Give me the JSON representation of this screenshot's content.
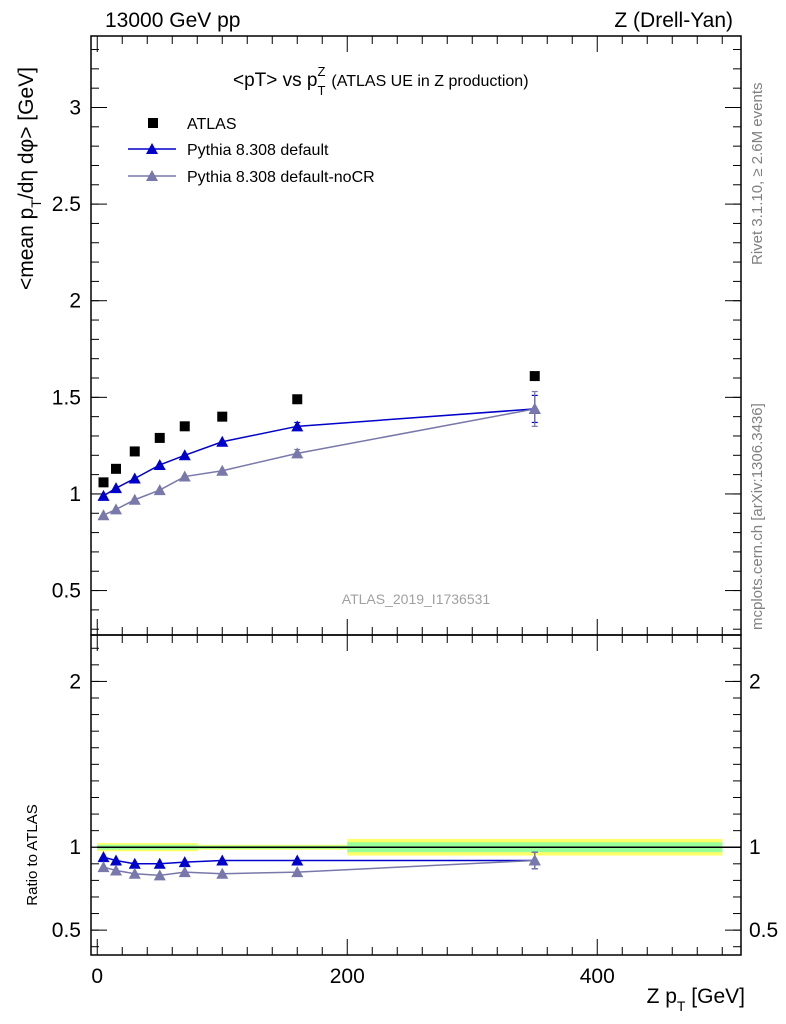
{
  "header": {
    "left": "13000 GeV pp",
    "right": "Z (Drell-Yan)"
  },
  "side_labels": {
    "rivet": "Rivet 3.1.10, ≥ 2.6M events",
    "mcplots": "mcplots.cern.ch [arXiv:1306.3436]"
  },
  "colors": {
    "atlas": "#000000",
    "default": "#0000cc",
    "noCR": "#7878aa",
    "band_inner": "#99ff99",
    "band_outer": "#ffff66"
  },
  "chart_data": [
    {
      "type": "scatter",
      "title": "<pT> vs p_T^Z (ATLAS UE in Z production)",
      "title_main": "<pT> vs p",
      "title_sub": "T",
      "title_sup": "Z",
      "title_rest": "(ATLAS UE in Z production)",
      "ylabel": "<mean p_T/dη dφ> [GeV]",
      "ylabel_parts": [
        "<mean p",
        "T",
        "/dη dφ> [GeV]"
      ],
      "watermark": "ATLAS_2019_I1736531",
      "xlim": [
        -5,
        515
      ],
      "ylim": [
        0.27,
        3.37
      ],
      "yticks": [
        0.5,
        1,
        1.5,
        2,
        2.5,
        3
      ],
      "ytick_labels": [
        "0.5",
        "1",
        "1.5",
        "2",
        "2.5",
        "3"
      ],
      "legend_position": "top-left",
      "series": [
        {
          "name": "ATLAS",
          "marker": "square",
          "x": [
            5,
            15,
            30,
            50,
            70,
            100,
            160,
            350
          ],
          "y": [
            1.06,
            1.13,
            1.22,
            1.29,
            1.35,
            1.4,
            1.49,
            1.61
          ]
        },
        {
          "name": "Pythia 8.308 default",
          "marker": "triangle",
          "x": [
            5,
            15,
            30,
            50,
            70,
            100,
            160,
            350
          ],
          "y": [
            0.99,
            1.03,
            1.08,
            1.15,
            1.2,
            1.27,
            1.35,
            1.44
          ],
          "yerr": [
            0.01,
            0.01,
            0.01,
            0.01,
            0.01,
            0.01,
            0.02,
            0.07
          ]
        },
        {
          "name": "Pythia 8.308 default-noCR",
          "marker": "triangle",
          "x": [
            5,
            15,
            30,
            50,
            70,
            100,
            160,
            350
          ],
          "y": [
            0.89,
            0.92,
            0.97,
            1.02,
            1.09,
            1.12,
            1.21,
            1.44
          ],
          "yerr": [
            0.01,
            0.01,
            0.01,
            0.01,
            0.01,
            0.01,
            0.02,
            0.09
          ]
        }
      ]
    },
    {
      "type": "scatter",
      "ylabel": "Ratio to ATLAS",
      "xlabel": "Z p_T [GeV]",
      "xlabel_parts": [
        "Z p",
        "T",
        " [GeV]"
      ],
      "xlim": [
        -5,
        515
      ],
      "ylim": [
        0.35,
        2.28
      ],
      "yticks": [
        0.5,
        1,
        2
      ],
      "ytick_labels": [
        "0.5",
        "1",
        "2"
      ],
      "xticks": [
        0,
        200,
        400
      ],
      "xtick_labels": [
        "0",
        "200",
        "400"
      ],
      "reference_line": 1,
      "bands": [
        {
          "x0": 0,
          "x1": 80,
          "inner": [
            0.985,
            1.015
          ],
          "outer": [
            0.975,
            1.025
          ]
        },
        {
          "x0": 80,
          "x1": 200,
          "inner": [
            0.99,
            1.01
          ],
          "outer": [
            0.985,
            1.015
          ]
        },
        {
          "x0": 200,
          "x1": 500,
          "inner": [
            0.97,
            1.03
          ],
          "outer": [
            0.95,
            1.05
          ]
        }
      ],
      "series": [
        {
          "name": "Pythia 8.308 default",
          "x": [
            5,
            15,
            30,
            50,
            70,
            100,
            160,
            350
          ],
          "y": [
            0.94,
            0.92,
            0.9,
            0.9,
            0.91,
            0.92,
            0.92,
            0.92
          ],
          "yerr": [
            0.005,
            0.005,
            0.005,
            0.005,
            0.005,
            0.005,
            0.01,
            0.05
          ]
        },
        {
          "name": "Pythia 8.308 default-noCR",
          "x": [
            5,
            15,
            30,
            50,
            70,
            100,
            160,
            350
          ],
          "y": [
            0.88,
            0.86,
            0.84,
            0.83,
            0.85,
            0.84,
            0.85,
            0.92
          ],
          "yerr": [
            0.005,
            0.005,
            0.005,
            0.005,
            0.005,
            0.005,
            0.01,
            0.05
          ]
        }
      ]
    }
  ]
}
